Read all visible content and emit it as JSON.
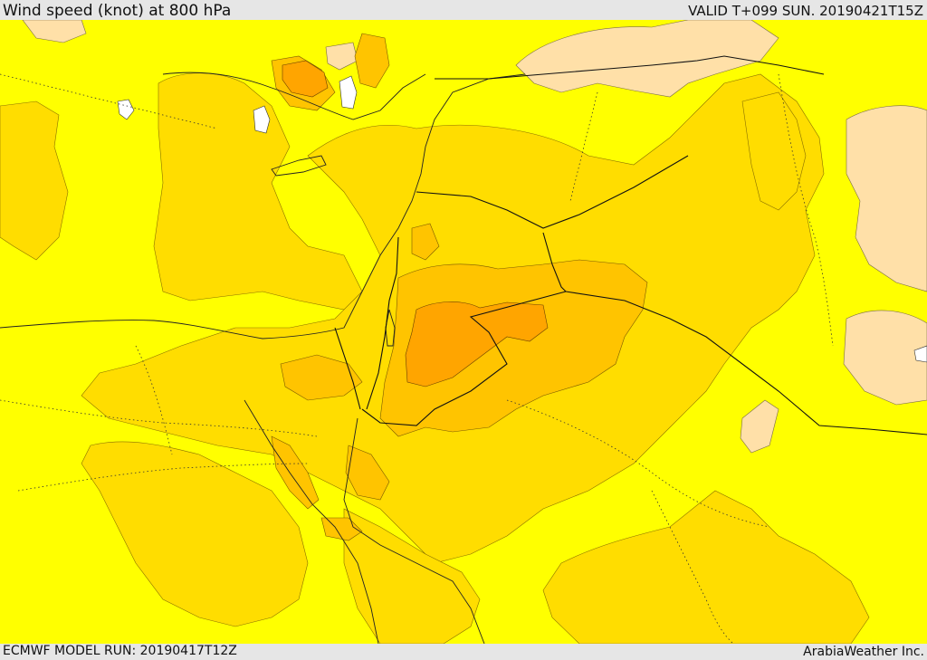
{
  "map": {
    "title": "Wind speed (knot) at 800 hPa",
    "valid_time": "VALID T+099 SUN. 20190421T15Z",
    "model_run": "ECMWF MODEL RUN: 20190417T12Z",
    "credit": "ArabiaWeather Inc."
  },
  "legend_colors": {
    "calm": "#ffe0a8",
    "low": "#ffff00",
    "moderate": "#ffdd00",
    "fresh": "#ffc400",
    "strong": "#ffa500",
    "water_lowest": "#ffffff"
  }
}
